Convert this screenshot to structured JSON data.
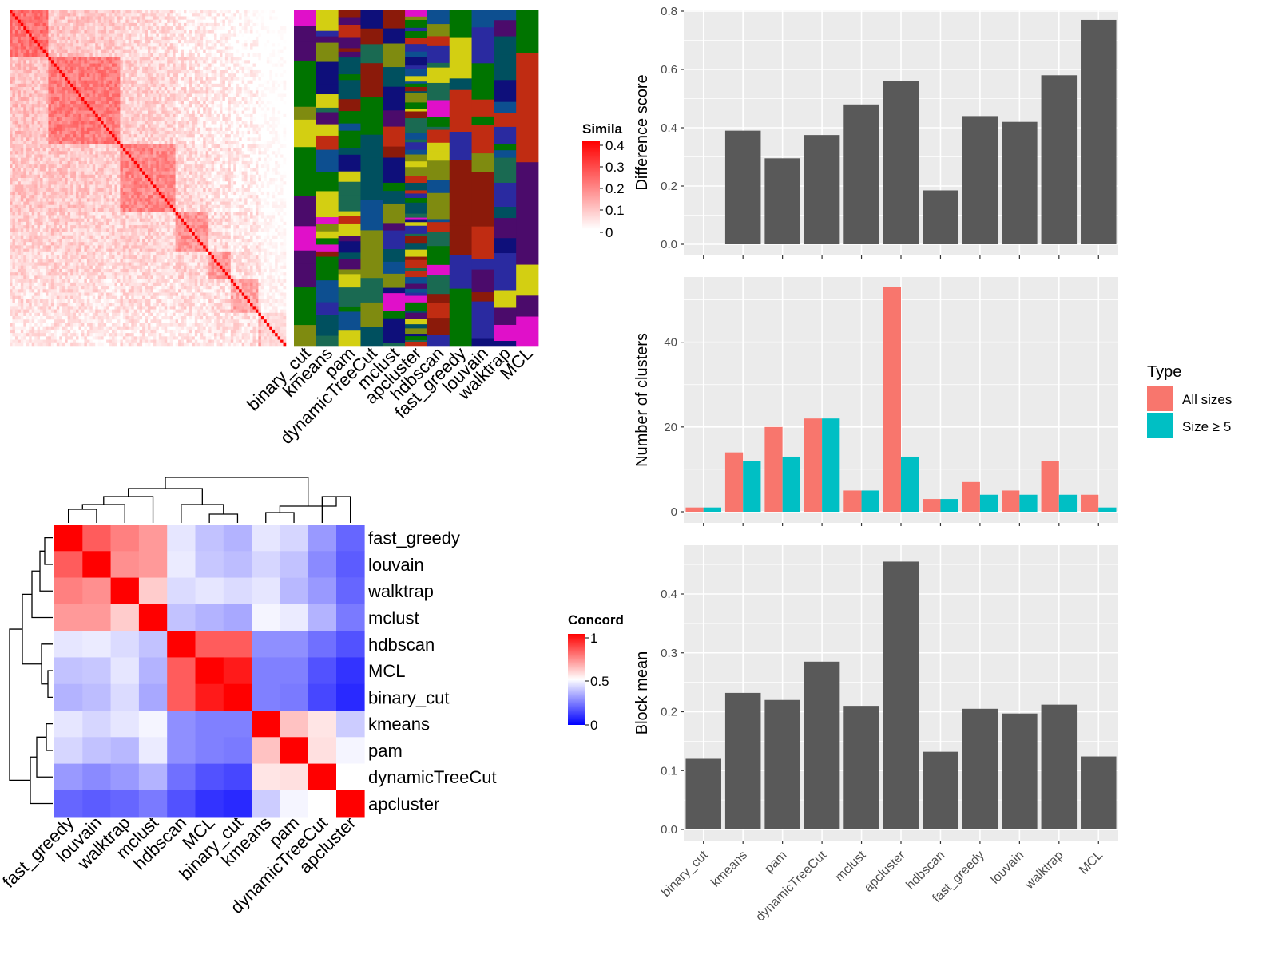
{
  "methods": [
    "binary_cut",
    "kmeans",
    "pam",
    "dynamicTreeCut",
    "mclust",
    "apcluster",
    "hdbscan",
    "fast_greedy",
    "louvain",
    "walktrap",
    "MCL"
  ],
  "colors": {
    "bar": "#595959",
    "panel_bg": "#ebebeb",
    "grid": "#ffffff",
    "all_sizes": "#f8766d",
    "size_ge5": "#00bfc4",
    "sim_high": "#ff0000",
    "sim_low": "#ffffff",
    "conc_low": "#0000ff",
    "conc_mid": "#ffffff",
    "conc_high": "#ff0000",
    "cluster_bg": "#00505f"
  },
  "similarity_legend": {
    "title": "Simila",
    "ticks": [
      "0.4",
      "0.3",
      "0.2",
      "0.1",
      "0"
    ]
  },
  "concordance_legend": {
    "title": "Concord",
    "ticks": [
      "1",
      "0.5",
      "0"
    ]
  },
  "cluster_columns": [
    "binary_cut",
    "kmeans",
    "pam",
    "dynamicTreeCut",
    "mclust",
    "apcluster",
    "hdbscan",
    "fast_greedy",
    "louvain",
    "walktrap",
    "MCL"
  ],
  "concordance": {
    "order": [
      "fast_greedy",
      "louvain",
      "walktrap",
      "mclust",
      "hdbscan",
      "MCL",
      "binary_cut",
      "kmeans",
      "pam",
      "dynamicTreeCut",
      "apcluster"
    ],
    "matrix": [
      [
        1.0,
        0.82,
        0.75,
        0.7,
        0.45,
        0.38,
        0.35,
        0.45,
        0.42,
        0.3,
        0.2
      ],
      [
        0.82,
        1.0,
        0.72,
        0.7,
        0.46,
        0.39,
        0.37,
        0.42,
        0.38,
        0.27,
        0.18
      ],
      [
        0.75,
        0.72,
        1.0,
        0.6,
        0.43,
        0.45,
        0.43,
        0.45,
        0.36,
        0.3,
        0.2
      ],
      [
        0.7,
        0.7,
        0.6,
        1.0,
        0.38,
        0.35,
        0.33,
        0.48,
        0.46,
        0.35,
        0.24
      ],
      [
        0.45,
        0.46,
        0.43,
        0.38,
        1.0,
        0.82,
        0.82,
        0.28,
        0.28,
        0.22,
        0.16
      ],
      [
        0.38,
        0.39,
        0.45,
        0.35,
        0.82,
        1.0,
        0.95,
        0.25,
        0.25,
        0.16,
        0.1
      ],
      [
        0.35,
        0.37,
        0.43,
        0.33,
        0.82,
        0.95,
        1.0,
        0.25,
        0.24,
        0.14,
        0.08
      ],
      [
        0.45,
        0.42,
        0.45,
        0.48,
        0.28,
        0.25,
        0.25,
        1.0,
        0.62,
        0.55,
        0.4
      ],
      [
        0.42,
        0.38,
        0.36,
        0.46,
        0.28,
        0.25,
        0.24,
        0.62,
        1.0,
        0.56,
        0.48
      ],
      [
        0.3,
        0.27,
        0.3,
        0.35,
        0.22,
        0.16,
        0.14,
        0.55,
        0.56,
        1.0,
        0.5
      ],
      [
        0.2,
        0.18,
        0.2,
        0.24,
        0.16,
        0.1,
        0.08,
        0.4,
        0.48,
        0.5,
        1.0
      ]
    ]
  },
  "chart_data": [
    {
      "type": "bar",
      "ylabel": "Difference score",
      "categories": [
        "binary_cut",
        "kmeans",
        "pam",
        "dynamicTreeCut",
        "mclust",
        "apcluster",
        "hdbscan",
        "fast_greedy",
        "louvain",
        "walktrap",
        "MCL"
      ],
      "values": [
        0.0,
        0.39,
        0.295,
        0.375,
        0.48,
        0.56,
        0.185,
        0.44,
        0.42,
        0.58,
        0.77
      ],
      "ylim": [
        0,
        0.8
      ],
      "yticks": [
        0.0,
        0.2,
        0.4,
        0.6,
        0.8
      ],
      "ytick_labels": [
        "0.0",
        "0.2",
        "0.4",
        "0.6",
        "0.8"
      ]
    },
    {
      "type": "bar",
      "ylabel": "Number of clusters",
      "categories": [
        "binary_cut",
        "kmeans",
        "pam",
        "dynamicTreeCut",
        "mclust",
        "apcluster",
        "hdbscan",
        "fast_greedy",
        "louvain",
        "walktrap",
        "MCL"
      ],
      "legend_title": "Type",
      "series": [
        {
          "name": "All sizes",
          "values": [
            1,
            14,
            20,
            22,
            5,
            53,
            3,
            7,
            5,
            12,
            4
          ]
        },
        {
          "name": "Size ≥ 5",
          "values": [
            1,
            12,
            13,
            22,
            5,
            13,
            3,
            4,
            4,
            4,
            1
          ]
        }
      ],
      "ylim": [
        0,
        55
      ],
      "yticks": [
        0,
        20,
        40
      ],
      "ytick_labels": [
        "0",
        "20",
        "40"
      ]
    },
    {
      "type": "bar",
      "ylabel": "Block mean",
      "categories": [
        "binary_cut",
        "kmeans",
        "pam",
        "dynamicTreeCut",
        "mclust",
        "apcluster",
        "hdbscan",
        "fast_greedy",
        "louvain",
        "walktrap",
        "MCL"
      ],
      "values": [
        0.12,
        0.232,
        0.22,
        0.285,
        0.21,
        0.455,
        0.132,
        0.205,
        0.197,
        0.212,
        0.124
      ],
      "ylim": [
        0,
        0.48
      ],
      "yticks": [
        0.0,
        0.1,
        0.2,
        0.3,
        0.4
      ],
      "ytick_labels": [
        "0.0",
        "0.1",
        "0.2",
        "0.3",
        "0.4"
      ]
    }
  ]
}
